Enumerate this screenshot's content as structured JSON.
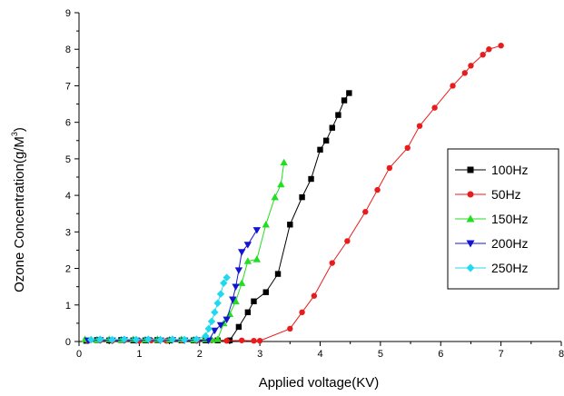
{
  "chart_data": {
    "type": "scatter",
    "xlabel": "Applied voltage(KV)",
    "ylabel": "Ozone Concentration(g/M",
    "ylabel_sup": "3",
    "xlim": [
      0,
      8
    ],
    "ylim": [
      0,
      9
    ],
    "xticks": [
      "0",
      "1",
      "2",
      "3",
      "4",
      "5",
      "6",
      "7",
      "8"
    ],
    "yticks": [
      "0",
      "1",
      "2",
      "3",
      "4",
      "5",
      "6",
      "7",
      "8",
      "9"
    ],
    "grid": false,
    "legend_position": "right",
    "series": [
      {
        "name": "100Hz",
        "color": "#000000",
        "marker": "square",
        "x": [
          0.12,
          0.3,
          0.5,
          0.7,
          0.9,
          1.1,
          1.3,
          1.5,
          1.7,
          1.9,
          2.1,
          2.3,
          2.5,
          2.65,
          2.8,
          2.9,
          3.1,
          3.3,
          3.5,
          3.7,
          3.85,
          4.0,
          4.1,
          4.2,
          4.3,
          4.4,
          4.48
        ],
        "y": [
          0.02,
          0.04,
          0.03,
          0.04,
          0.03,
          0.03,
          0.04,
          0.03,
          0.03,
          0.03,
          0.03,
          0.03,
          0.03,
          0.4,
          0.8,
          1.1,
          1.35,
          1.85,
          3.2,
          3.95,
          4.45,
          5.25,
          5.5,
          5.85,
          6.2,
          6.6,
          6.8
        ]
      },
      {
        "name": "50Hz",
        "color": "#e81c1c",
        "marker": "circle",
        "x": [
          0.15,
          0.35,
          0.55,
          0.75,
          1.0,
          1.2,
          1.45,
          1.7,
          1.95,
          2.2,
          2.45,
          2.7,
          2.9,
          3.0,
          3.5,
          3.7,
          3.9,
          4.2,
          4.45,
          4.75,
          4.95,
          5.15,
          5.45,
          5.65,
          5.9,
          6.2,
          6.4,
          6.5,
          6.7,
          6.8,
          7.0
        ],
        "y": [
          0.02,
          0.03,
          0.02,
          0.03,
          0.02,
          0.03,
          0.02,
          0.03,
          0.02,
          0.03,
          0.02,
          0.03,
          0.02,
          0.02,
          0.35,
          0.8,
          1.25,
          2.15,
          2.75,
          3.55,
          4.15,
          4.75,
          5.3,
          5.9,
          6.4,
          7.0,
          7.35,
          7.55,
          7.85,
          8.0,
          8.1
        ]
      },
      {
        "name": "150Hz",
        "color": "#22dd22",
        "marker": "triangle-up",
        "x": [
          0.1,
          0.3,
          0.5,
          0.7,
          0.9,
          1.1,
          1.3,
          1.5,
          1.7,
          1.9,
          2.1,
          2.2,
          2.3,
          2.4,
          2.5,
          2.6,
          2.7,
          2.8,
          2.95,
          3.1,
          3.25,
          3.35,
          3.4
        ],
        "y": [
          0.06,
          0.05,
          0.06,
          0.05,
          0.06,
          0.05,
          0.06,
          0.05,
          0.06,
          0.05,
          0.06,
          0.05,
          0.06,
          0.5,
          0.75,
          1.1,
          1.6,
          2.2,
          2.25,
          3.2,
          3.95,
          4.3,
          4.9
        ]
      },
      {
        "name": "200Hz",
        "color": "#1414d0",
        "marker": "triangle-down",
        "x": [
          0.15,
          0.35,
          0.55,
          0.75,
          0.95,
          1.15,
          1.35,
          1.55,
          1.75,
          1.95,
          2.15,
          2.25,
          2.35,
          2.45,
          2.55,
          2.6,
          2.65,
          2.7,
          2.8,
          2.95
        ],
        "y": [
          0.03,
          0.04,
          0.03,
          0.04,
          0.03,
          0.04,
          0.03,
          0.04,
          0.03,
          0.04,
          0.03,
          0.3,
          0.45,
          0.6,
          1.15,
          1.5,
          1.95,
          2.45,
          2.65,
          3.05
        ]
      },
      {
        "name": "250Hz",
        "color": "#22d8ee",
        "marker": "diamond",
        "x": [
          0.2,
          0.35,
          0.55,
          0.75,
          0.95,
          1.15,
          1.35,
          1.55,
          1.75,
          1.95,
          2.1,
          2.15,
          2.2,
          2.25,
          2.3,
          2.35,
          2.4,
          2.45
        ],
        "y": [
          0.05,
          0.06,
          0.05,
          0.06,
          0.05,
          0.06,
          0.05,
          0.06,
          0.05,
          0.06,
          0.15,
          0.35,
          0.55,
          0.8,
          1.05,
          1.3,
          1.6,
          1.75
        ]
      }
    ]
  }
}
